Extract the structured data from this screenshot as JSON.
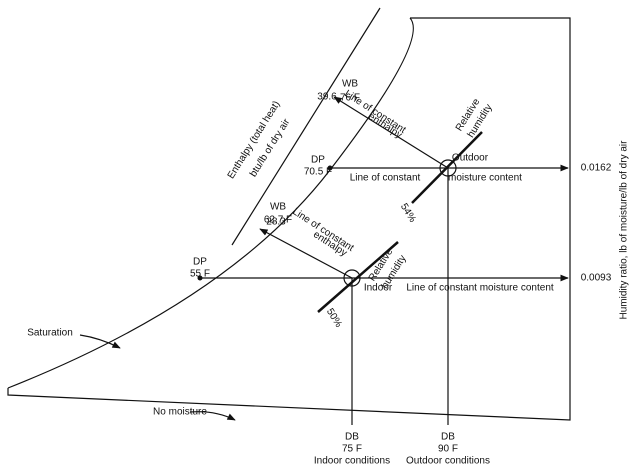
{
  "labels": [
    "Enthalpy (total heat)",
    "btu/lb of dry air",
    "39.6",
    "WB",
    "76 F",
    "Line of constant",
    "enthalpy",
    "Relative",
    "humidity",
    "DP",
    "70.5 F",
    "Outdoor",
    "Line of constant",
    "moisture content",
    "0.0162",
    "54%",
    "28.3",
    "WB",
    "62.7 F",
    "Line of constant",
    "enthalpy",
    "Relative",
    "humidity",
    "DP",
    "55 F",
    "Indoor",
    "Line of constant moisture content",
    "0.0093",
    "50%",
    "Saturation",
    "No moisture",
    "DB",
    "75 F",
    "Indoor conditions",
    "DB",
    "90 F",
    "Outdoor conditions",
    "Humidity ratio, lb of moisture/lb of dry air"
  ]
}
